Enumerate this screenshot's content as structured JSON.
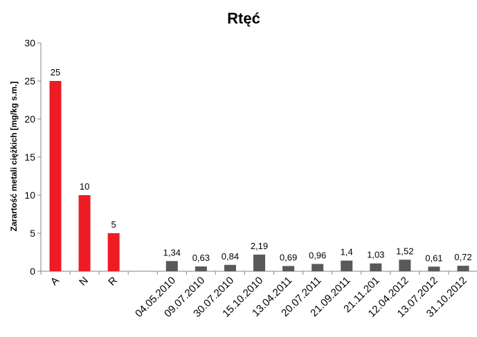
{
  "chart_data": {
    "type": "bar",
    "title": "Rtęć",
    "xlabel": "",
    "ylabel": "Zarartość  metali ciężkich [mg/kg s.m.]",
    "ylim": [
      0,
      30
    ],
    "yticks": [
      "0",
      "5",
      "10",
      "15",
      "20",
      "25",
      "30"
    ],
    "grid": false,
    "legend": "none",
    "categories": [
      "A",
      "N",
      "R",
      "",
      "04.05.2010",
      "09.07.2010",
      "30.07.2010",
      "15.10.2010",
      "13.04.2011",
      "20.07.2011",
      "21.09.2011",
      "21.11.201",
      "12.04.2012",
      "13.07.2012",
      "31.10.2012"
    ],
    "values": [
      25,
      10,
      5,
      null,
      1.34,
      0.63,
      0.84,
      2.19,
      0.69,
      0.96,
      1.4,
      1.03,
      1.52,
      0.61,
      0.72
    ],
    "data_labels": [
      "25",
      "10",
      "5",
      "",
      "1,34",
      "0,63",
      "0,84",
      "2,19",
      "0,69",
      "0,96",
      "1,4",
      "1,03",
      "1,52",
      "0,61",
      "0,72"
    ],
    "bar_colors": [
      "#ed1c24",
      "#ed1c24",
      "#ed1c24",
      "",
      "#595959",
      "#595959",
      "#595959",
      "#595959",
      "#595959",
      "#595959",
      "#595959",
      "#595959",
      "#595959",
      "#595959",
      "#595959"
    ]
  }
}
